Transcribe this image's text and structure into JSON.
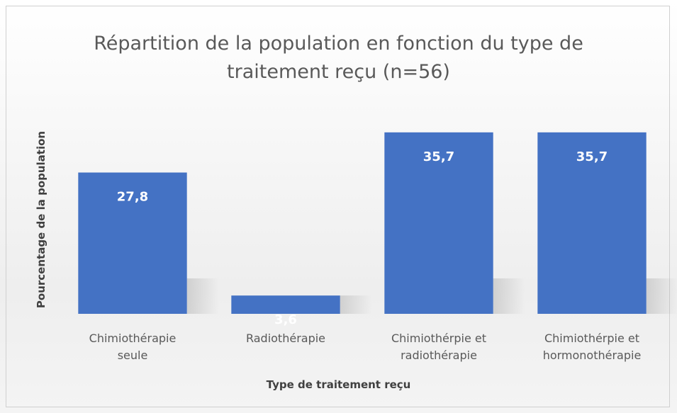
{
  "chart_data": {
    "type": "bar",
    "title": "Répartition de la population en fonction du type de traitement reçu (n=56)",
    "x_label": "Type de traitement reçu",
    "y_label": "Pourcentage de la population",
    "categories": [
      "Chimiothérapie seule",
      "Radiothérapie",
      "Chimiothérpie et radiothérapie",
      "Chimiothérpie et hormonothérapie"
    ],
    "values": [
      27.8,
      3.6,
      35.7,
      35.7
    ],
    "value_labels": [
      "27,8",
      "3,6",
      "35,7",
      "35,7"
    ],
    "color": "#4472c4",
    "ylim": [
      0,
      40
    ]
  }
}
